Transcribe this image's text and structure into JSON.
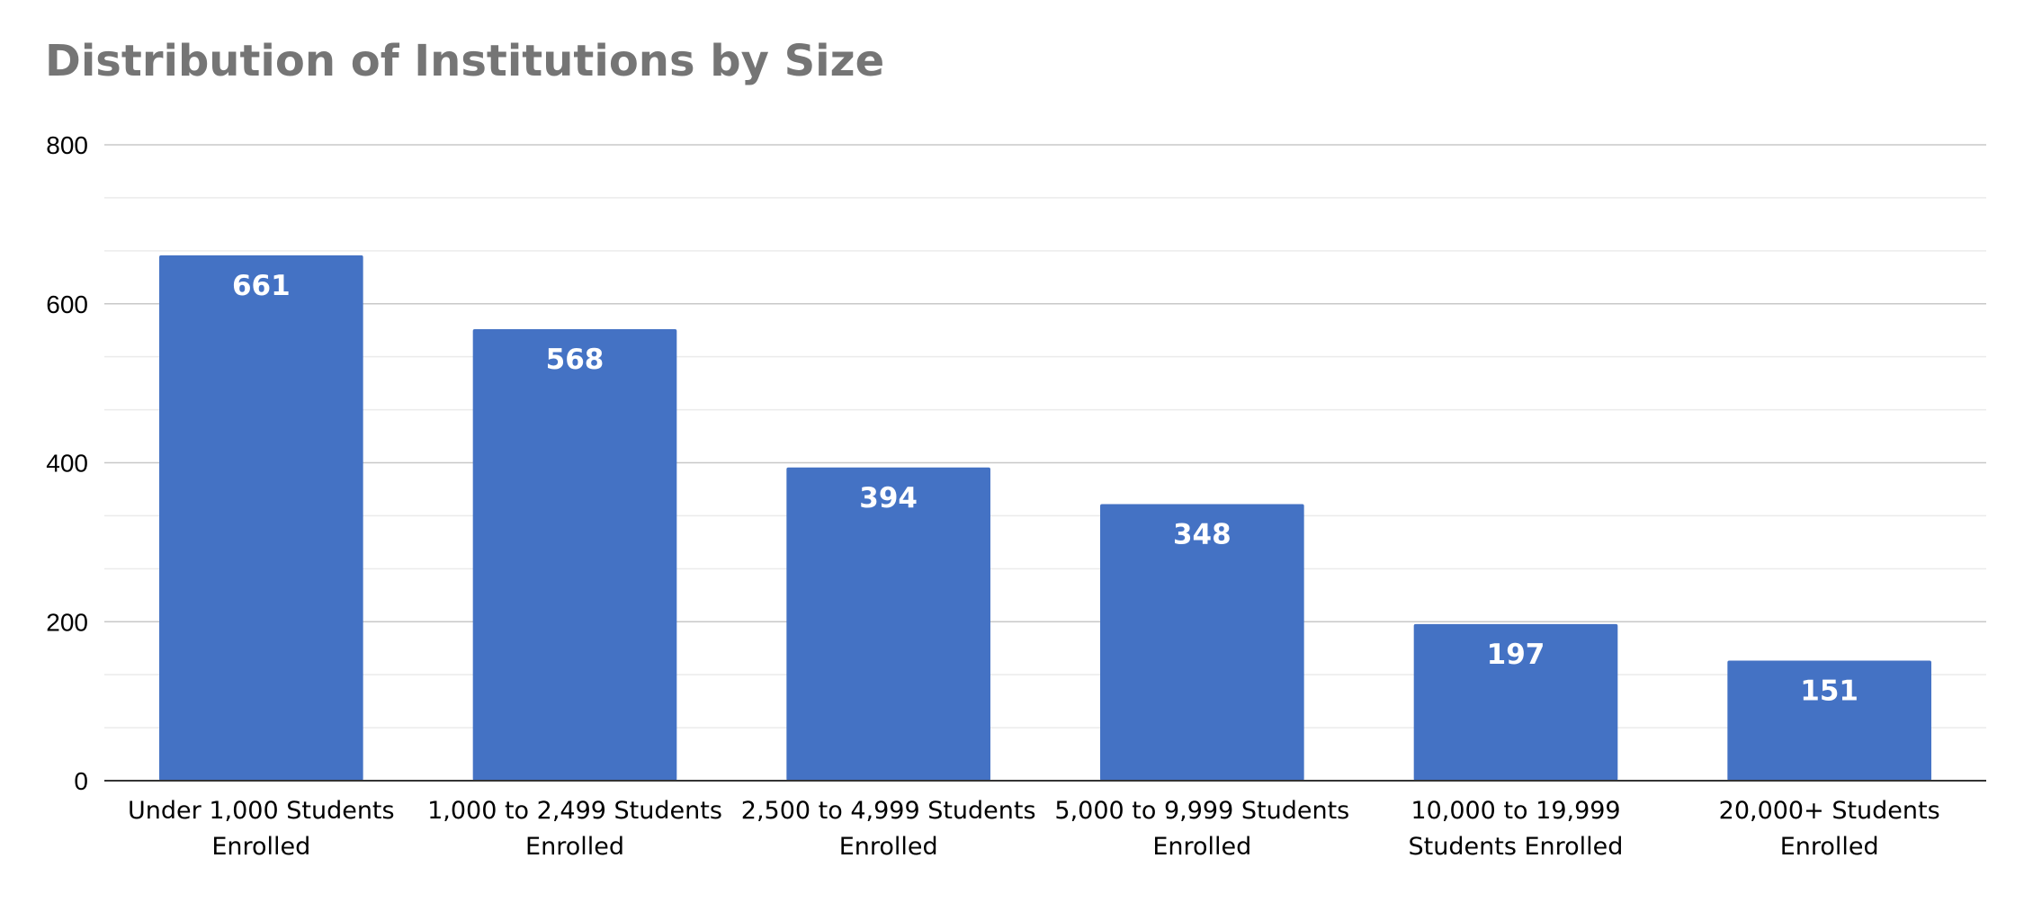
{
  "chart_data": {
    "type": "bar",
    "title": "Distribution of Institutions by Size",
    "xlabel": "",
    "ylabel": "",
    "categories": [
      "Under 1,000 Students Enrolled",
      "1,000 to 2,499 Students Enrolled",
      "2,500 to 4,999 Students Enrolled",
      "5,000 to 9,999 Students Enrolled",
      "10,000 to 19,999 Students Enrolled",
      "20,000+ Students Enrolled"
    ],
    "category_lines": [
      [
        "Under 1,000 Students",
        "Enrolled"
      ],
      [
        "1,000 to 2,499 Students",
        "Enrolled"
      ],
      [
        "2,500 to 4,999 Students",
        "Enrolled"
      ],
      [
        "5,000 to 9,999 Students",
        "Enrolled"
      ],
      [
        "10,000 to 19,999",
        "Students Enrolled"
      ],
      [
        "20,000+ Students",
        "Enrolled"
      ]
    ],
    "values": [
      661,
      568,
      394,
      348,
      197,
      151
    ],
    "ylim": [
      0,
      800
    ],
    "yticks": [
      0,
      200,
      400,
      600,
      800
    ],
    "minor_gridlines": true,
    "legend": "none",
    "bar_color": "#4472C4",
    "data_labels": true
  }
}
